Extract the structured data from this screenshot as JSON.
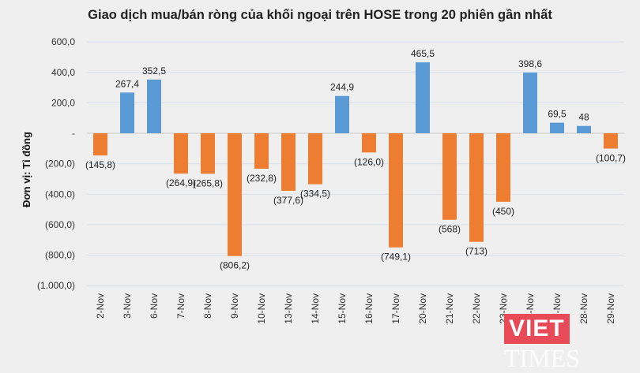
{
  "chart_data": {
    "type": "bar",
    "title": "Giao dịch mua/bán ròng của khối ngoại trên HOSE trong 20 phiên gần nhất",
    "ylabel": "Đơn vị: Tỉ đồng",
    "xlabel": "",
    "ylim": [
      -1000,
      600
    ],
    "yticks": [
      600,
      400,
      200,
      0,
      -200,
      -400,
      -600,
      -800,
      -1000
    ],
    "ytick_labels": [
      "600,0",
      "400,0",
      "200,0",
      "-",
      "(200,0)",
      "(400,0)",
      "(600,0)",
      "(800,0)",
      "(1.000,0)"
    ],
    "grid": true,
    "categories": [
      "2-Nov",
      "3-Nov",
      "6-Nov",
      "7-Nov",
      "8-Nov",
      "9-Nov",
      "10-Nov",
      "13-Nov",
      "14-Nov",
      "15-Nov",
      "16-Nov",
      "17-Nov",
      "20-Nov",
      "21-Nov",
      "22-Nov",
      "23-Nov",
      "24-Nov",
      "27-Nov",
      "28-Nov",
      "29-Nov"
    ],
    "values": [
      -145.8,
      267.4,
      352.5,
      -264.9,
      -265.8,
      -806.2,
      -232.8,
      -377.6,
      -334.5,
      244.9,
      -126.0,
      -749.1,
      465.5,
      -568,
      -713,
      -450,
      398.6,
      69.5,
      48,
      -100.7
    ],
    "data_labels": [
      "(145,8)",
      "267,4",
      "352,5",
      "(264,9)",
      "(265,8)",
      "(806,2)",
      "(232,8)",
      "(377,6)",
      "(334,5)",
      "244,9",
      "(126,0)",
      "(749,1)",
      "465,5",
      "(568)",
      "(713)",
      "(450)",
      "398,6",
      "69,5",
      "48",
      "(100,7)"
    ],
    "colors": {
      "positive": "#5b9bd5",
      "negative": "#ed7d31"
    }
  },
  "watermark": {
    "brand_left": "VIET",
    "brand_right": "TIMES"
  }
}
